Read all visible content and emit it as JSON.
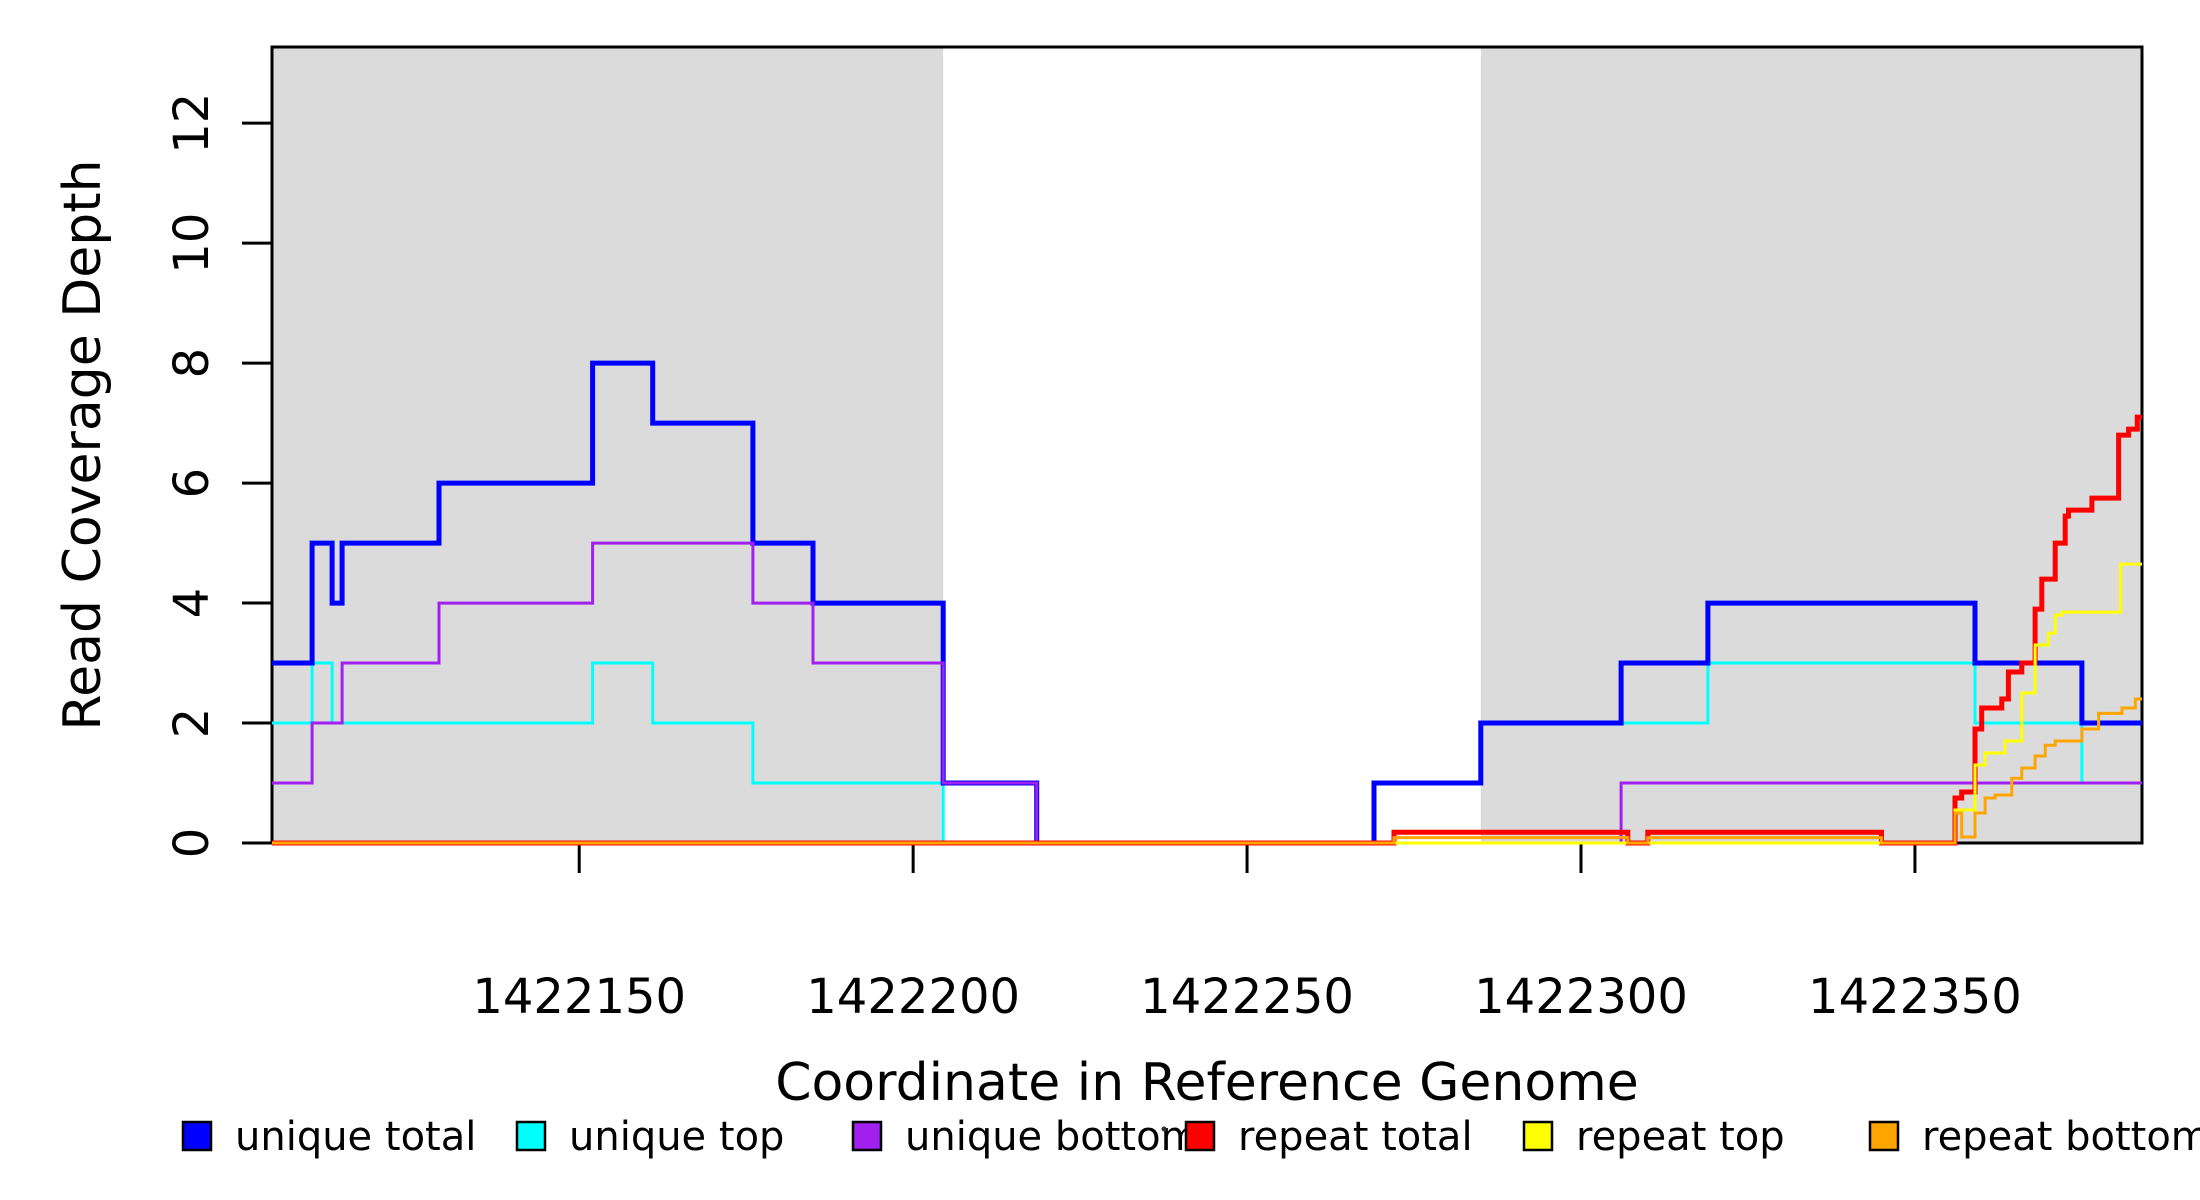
{
  "chart_data": {
    "type": "line",
    "style": "step",
    "xlabel": "Coordinate in Reference Genome",
    "ylabel": "Read Coverage Depth",
    "xlim": [
      1422104,
      1422384
    ],
    "ylim": [
      0,
      13.27
    ],
    "x_ticks": [
      1422150,
      1422200,
      1422250,
      1422300,
      1422350
    ],
    "y_ticks": [
      0,
      2,
      4,
      6,
      8,
      10,
      12
    ],
    "grid": false,
    "plot_background": "#ffffff",
    "shaded_regions": [
      {
        "name": "left-gray-block",
        "x0": 1422104,
        "x1": 1422204.5,
        "color": "#DBDBDB"
      },
      {
        "name": "right-gray-block",
        "x0": 1422285,
        "x1": 1422384,
        "color": "#DBDBDB"
      }
    ],
    "series": [
      {
        "name": "unique top",
        "color": "#00FFFF",
        "line_width": 3,
        "points": [
          [
            1422104,
            2
          ],
          [
            1422110,
            3
          ],
          [
            1422113,
            2
          ],
          [
            1422152,
            3
          ],
          [
            1422161,
            2
          ],
          [
            1422176,
            1
          ],
          [
            1422204.5,
            0
          ],
          [
            1422269,
            1
          ],
          [
            1422285,
            2
          ],
          [
            1422319,
            3
          ],
          [
            1422359,
            2
          ],
          [
            1422375,
            1
          ]
        ]
      },
      {
        "name": "unique total",
        "color": "#0000FF",
        "line_width": 5,
        "points": [
          [
            1422104,
            3
          ],
          [
            1422110,
            5
          ],
          [
            1422113,
            4
          ],
          [
            1422114.5,
            5
          ],
          [
            1422129,
            6
          ],
          [
            1422152,
            8
          ],
          [
            1422161,
            7
          ],
          [
            1422176,
            5
          ],
          [
            1422185,
            4
          ],
          [
            1422204.5,
            1
          ],
          [
            1422218.5,
            0
          ],
          [
            1422269,
            1
          ],
          [
            1422285,
            2
          ],
          [
            1422306,
            3
          ],
          [
            1422319,
            4
          ],
          [
            1422359,
            3
          ],
          [
            1422375,
            2
          ]
        ]
      },
      {
        "name": "unique bottom",
        "color": "#A020F0",
        "line_width": 3,
        "points": [
          [
            1422104,
            1
          ],
          [
            1422110,
            2
          ],
          [
            1422114.5,
            3
          ],
          [
            1422129,
            4
          ],
          [
            1422152,
            5
          ],
          [
            1422176,
            4
          ],
          [
            1422185,
            3
          ],
          [
            1422204.5,
            1
          ],
          [
            1422218.5,
            0
          ],
          [
            1422306,
            1
          ]
        ]
      },
      {
        "name": "repeat total",
        "color": "#FF0000",
        "line_width": 5,
        "points": [
          [
            1422104,
            0
          ],
          [
            1422272,
            0.18
          ],
          [
            1422307,
            0
          ],
          [
            1422310,
            0.18
          ],
          [
            1422345,
            0
          ],
          [
            1422356,
            0.75
          ],
          [
            1422357,
            0.85
          ],
          [
            1422359,
            1.9
          ],
          [
            1422360,
            2.25
          ],
          [
            1422363,
            2.4
          ],
          [
            1422364,
            2.85
          ],
          [
            1422366,
            3.0
          ],
          [
            1422368,
            3.9
          ],
          [
            1422369,
            4.4
          ],
          [
            1422371,
            5.0
          ],
          [
            1422372.5,
            5.45
          ],
          [
            1422373,
            5.55
          ],
          [
            1422376.5,
            5.75
          ],
          [
            1422380.5,
            6.8
          ],
          [
            1422382,
            6.9
          ],
          [
            1422383.3,
            7.1
          ]
        ]
      },
      {
        "name": "repeat top",
        "color": "#FFFF00",
        "line_width": 3,
        "points": [
          [
            1422104,
            0
          ],
          [
            1422356,
            0.55
          ],
          [
            1422359,
            1.3
          ],
          [
            1422360.5,
            1.5
          ],
          [
            1422363.5,
            1.7
          ],
          [
            1422366,
            2.5
          ],
          [
            1422368,
            3.3
          ],
          [
            1422370,
            3.5
          ],
          [
            1422371,
            3.8
          ],
          [
            1422372,
            3.85
          ],
          [
            1422380.8,
            4.65
          ]
        ]
      },
      {
        "name": "repeat bottom",
        "color": "#FFA500",
        "line_width": 3,
        "points": [
          [
            1422104,
            0
          ],
          [
            1422272,
            0.09
          ],
          [
            1422307,
            0
          ],
          [
            1422310,
            0.09
          ],
          [
            1422345,
            0
          ],
          [
            1422356,
            0.5
          ],
          [
            1422357,
            0.1
          ],
          [
            1422359,
            0.5
          ],
          [
            1422360.5,
            0.75
          ],
          [
            1422362,
            0.8
          ],
          [
            1422364.5,
            1.08
          ],
          [
            1422366,
            1.25
          ],
          [
            1422368,
            1.45
          ],
          [
            1422369.5,
            1.63
          ],
          [
            1422371,
            1.7
          ],
          [
            1422375,
            1.9
          ],
          [
            1422377.5,
            2.16
          ],
          [
            1422381,
            2.25
          ],
          [
            1422383,
            2.4
          ]
        ]
      }
    ],
    "legend": {
      "position": "bottom",
      "items": [
        {
          "label": "unique total",
          "color": "#0000FF"
        },
        {
          "label": "unique top",
          "color": "#00FFFF"
        },
        {
          "label": "unique bottom",
          "color": "#A020F0"
        },
        {
          "label": "repeat total",
          "color": "#FF0000"
        },
        {
          "label": "repeat top",
          "color": "#FFFF00"
        },
        {
          "label": "repeat bottom",
          "color": "#FFA500"
        }
      ]
    },
    "axis_color": "#000000"
  }
}
